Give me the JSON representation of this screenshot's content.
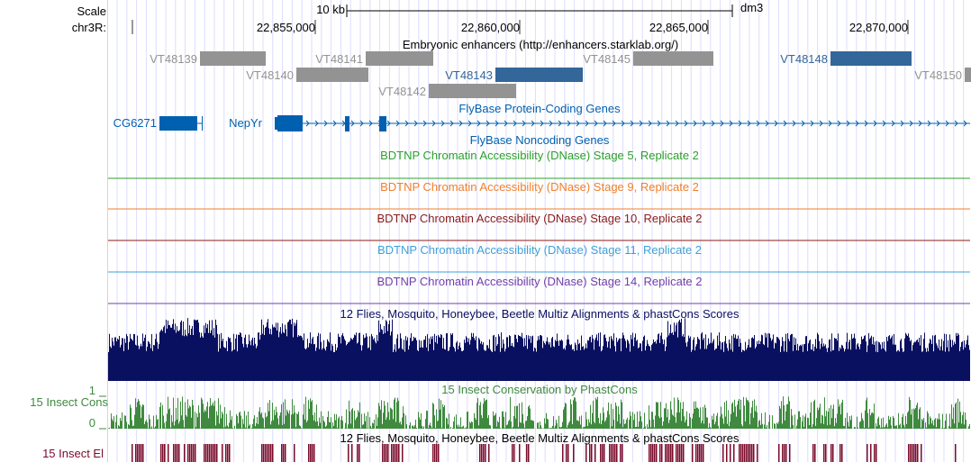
{
  "scale": {
    "label": "Scale",
    "bar": "10 kb",
    "assembly": "dm3"
  },
  "ruler": {
    "chrom": "chr3R:",
    "ticks": [
      "22,855,000",
      "22,860,000",
      "22,865,000",
      "22,870,000"
    ]
  },
  "tracks": {
    "enhancers": {
      "title": "Embryonic enhancers (http://enhancers.starklab.org/)",
      "items": [
        "VT48139",
        "VT48141",
        "VT48145",
        "VT48148",
        "VT48140",
        "VT48143",
        "VT48150",
        "VT48142"
      ]
    },
    "protein_genes": {
      "title": "FlyBase Protein-Coding Genes",
      "genes": [
        "CG6271",
        "NepYr"
      ]
    },
    "noncoding": {
      "title": "FlyBase Noncoding Genes"
    },
    "dnase": [
      {
        "title": "BDTNP Chromatin Accessibility (DNase) Stage 5, Replicate 2",
        "color": "#2ca02c"
      },
      {
        "title": "BDTNP Chromatin Accessibility (DNase) Stage 9, Replicate 2",
        "color": "#f07f2a"
      },
      {
        "title": "BDTNP Chromatin Accessibility (DNase) Stage 10, Replicate 2",
        "color": "#8b1a1a"
      },
      {
        "title": "BDTNP Chromatin Accessibility (DNase) Stage 11, Replicate 2",
        "color": "#3fa0d8"
      },
      {
        "title": "BDTNP Chromatin Accessibility (DNase) Stage 14, Replicate 2",
        "color": "#7040a8"
      }
    ],
    "multiz": {
      "title": "12 Flies, Mosquito, Honeybee, Beetle Multiz Alignments & phastCons Scores",
      "color": "#0a1060"
    },
    "cons": {
      "title": "15 Insect Conservation by PhastCons",
      "label": "15 Insect Cons",
      "ymax": "1",
      "ymin": "0",
      "color": "#3f8a3f"
    },
    "elements": {
      "title": "12 Flies, Mosquito, Honeybee, Beetle Multiz Alignments & phastCons Scores",
      "label": "15 Insect El",
      "color": "#7a0a2a"
    }
  },
  "colors": {
    "gray_enhancer": "#939393",
    "blue_enhancer": "#336699",
    "gene": "#0060b0"
  }
}
